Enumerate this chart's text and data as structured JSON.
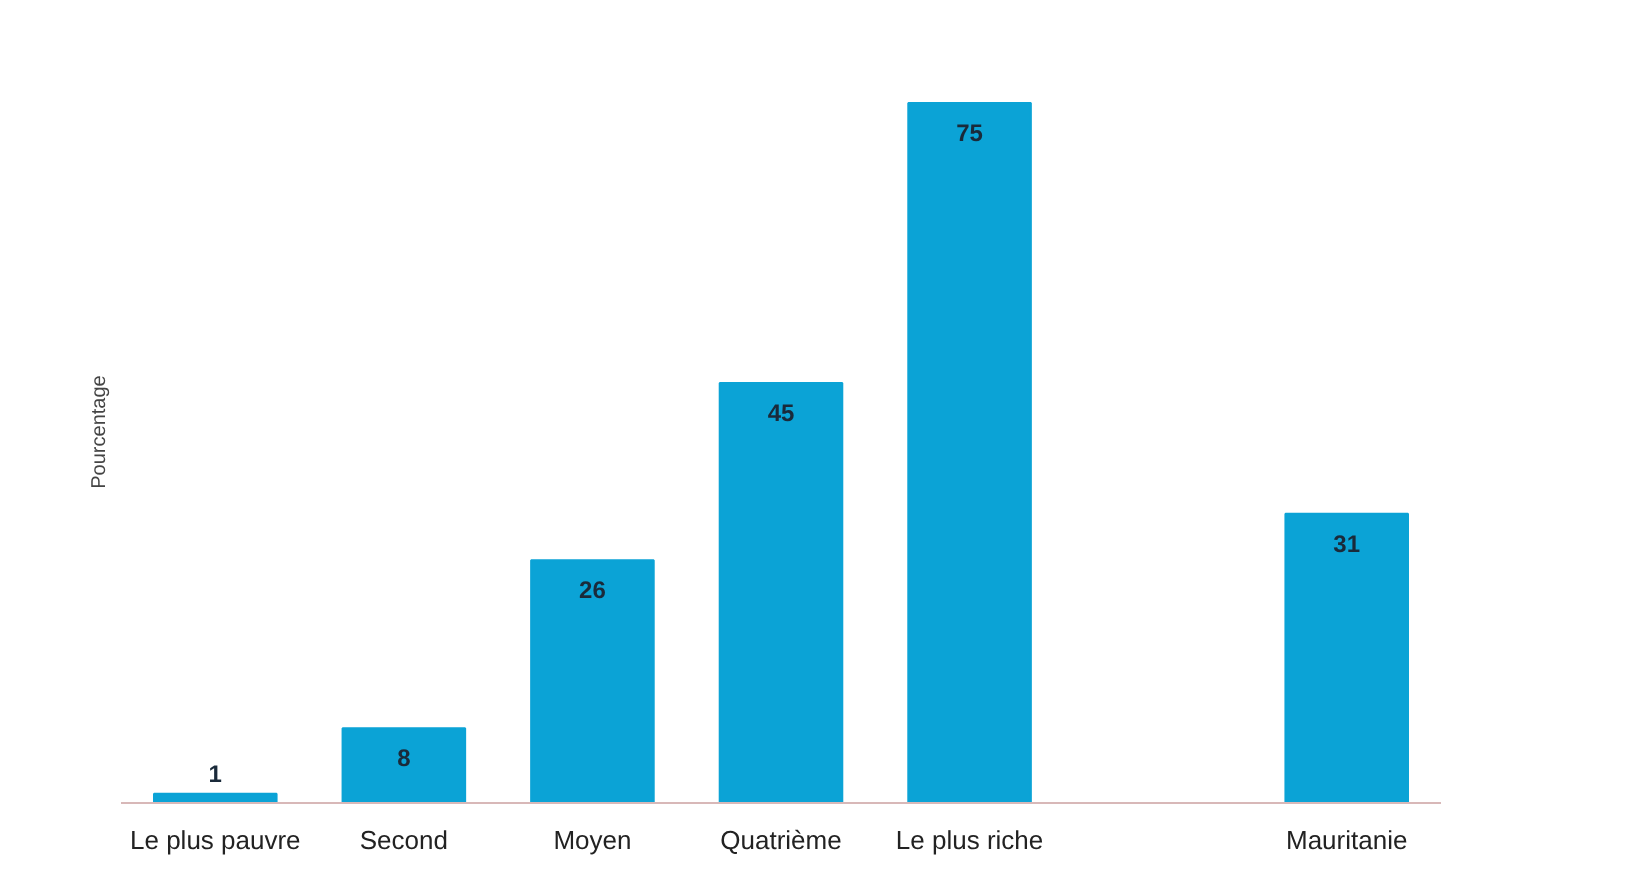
{
  "chart_data": {
    "type": "bar",
    "ylabel": "Pourcentage",
    "categories": [
      "Le plus pauvre",
      "Second",
      "Moyen",
      "Quatrième",
      "Le plus riche",
      null,
      "Mauritanie"
    ],
    "values": [
      1,
      8,
      26,
      45,
      75,
      null,
      31
    ],
    "color": "#0ba3d6",
    "data_labels": true,
    "grid": false
  }
}
